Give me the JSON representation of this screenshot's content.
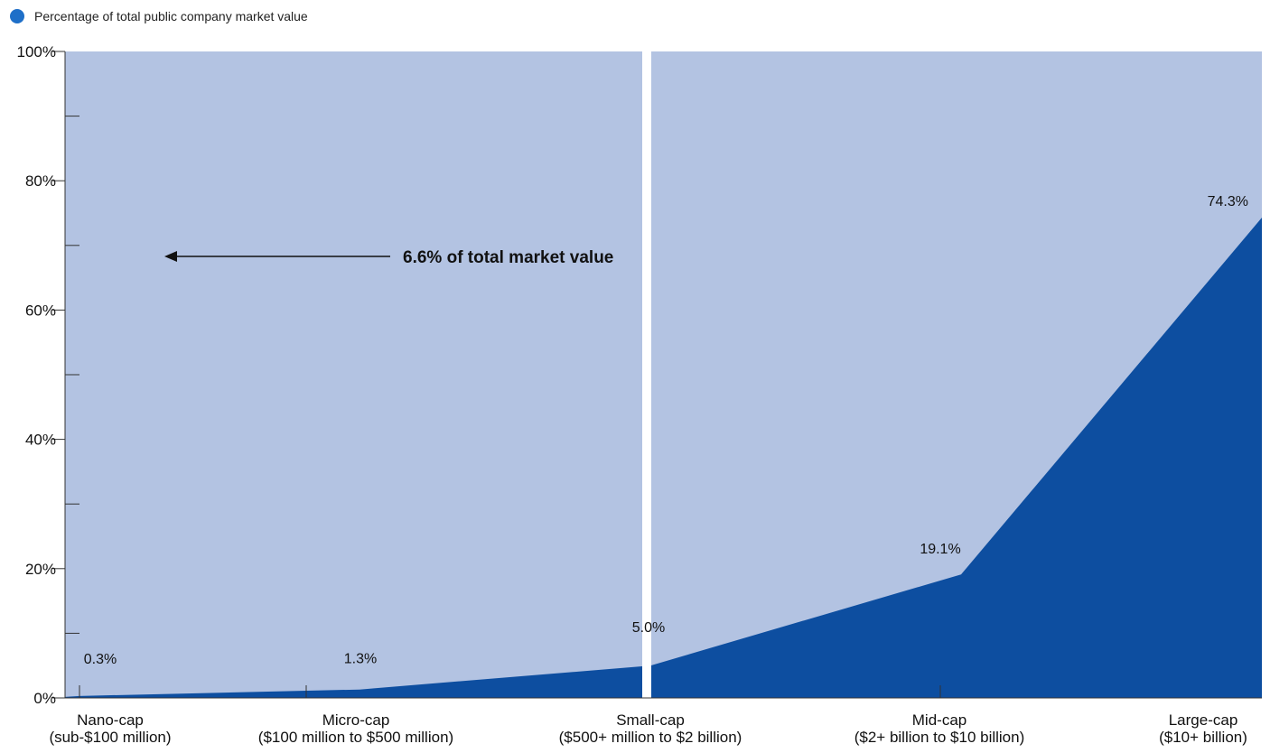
{
  "colors": {
    "legend_dot": "#1e6fc8",
    "background_area": "#b3c3e2",
    "series_area": "#0d4ea0",
    "axis": "#333333",
    "divider": "#ffffff"
  },
  "legend": {
    "items": [
      {
        "label": "Percentage of total public company market value",
        "icon": "circle-dot"
      }
    ]
  },
  "annotation": {
    "text": "6.6% of total market value",
    "arrow_direction": "left"
  },
  "chart_data": {
    "type": "area",
    "title": "",
    "xlabel": "",
    "ylabel": "",
    "ylim": [
      0,
      100
    ],
    "y_ticks": [
      "0%",
      "20%",
      "40%",
      "60%",
      "80%",
      "100%"
    ],
    "categories": [
      {
        "name": "Nano-cap",
        "range": "(sub-$100 million)"
      },
      {
        "name": "Micro-cap",
        "range": "($100 million to $500 million)"
      },
      {
        "name": "Small-cap",
        "range": "($500+ million to $2 billion)"
      },
      {
        "name": "Mid-cap",
        "range": "($2+ billion to $10 billion)"
      },
      {
        "name": "Large-cap",
        "range": "($10+ billion)"
      }
    ],
    "series": [
      {
        "name": "Percentage of total public company market value",
        "values": [
          0.3,
          1.3,
          5.0,
          19.1,
          74.3
        ],
        "labels": [
          "0.3%",
          "1.3%",
          "5.0%",
          "19.1%",
          "74.3%"
        ]
      }
    ],
    "grid": false,
    "legend_position": "top-left",
    "divider_between": [
      "Small-cap",
      "Mid-cap"
    ]
  }
}
